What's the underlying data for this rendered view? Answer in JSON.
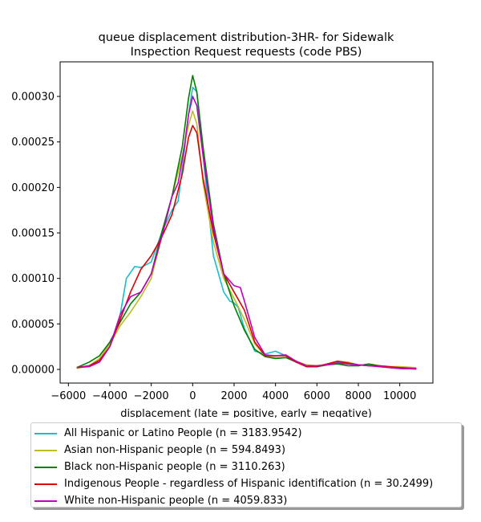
{
  "chart_data": {
    "type": "line",
    "title": "queue displacement distribution-3HR-  for Sidewalk\nInspection Request  requests (code PBS)",
    "xlabel": "displacement (late = positive, early = negative)",
    "ylabel": "",
    "xlim": [
      -6400,
      11600
    ],
    "ylim": [
      -1.5e-05,
      0.000338
    ],
    "xticks": [
      -6000,
      -4000,
      -2000,
      0,
      2000,
      4000,
      6000,
      8000,
      10000
    ],
    "xtick_labels": [
      "−6000",
      "−4000",
      "−2000",
      "0",
      "2000",
      "4000",
      "6000",
      "8000",
      "10000"
    ],
    "yticks": [
      0,
      5e-05,
      0.0001,
      0.00015,
      0.0002,
      0.00025,
      0.0003
    ],
    "ytick_labels": [
      "0.00000",
      "0.00005",
      "0.00010",
      "0.00015",
      "0.00020",
      "0.00025",
      "0.00030"
    ],
    "grid": false,
    "legend_position": "below",
    "series": [
      {
        "name": "All Hispanic or Latino People (n = 3183.9542)",
        "color": "#17becf",
        "x": [
          -5600,
          -5000,
          -4500,
          -4000,
          -3500,
          -3200,
          -2800,
          -2500,
          -2000,
          -1500,
          -1000,
          -700,
          -400,
          -200,
          0,
          200,
          400,
          700,
          1000,
          1500,
          1800,
          2000,
          2200,
          2500,
          3000,
          3500,
          4000,
          4500,
          5000,
          5500,
          6000,
          6500,
          7000,
          7500,
          8000,
          8500,
          9000,
          9500,
          10000,
          10800
        ],
        "y": [
          2e-06,
          4e-06,
          9e-06,
          2.5e-05,
          6e-05,
          0.0001,
          0.000113,
          0.000112,
          0.000118,
          0.00015,
          0.000175,
          0.000185,
          0.00024,
          0.00028,
          0.00031,
          0.000305,
          0.00026,
          0.00019,
          0.000125,
          8.5e-05,
          7.5e-05,
          7.3e-05,
          6.8e-05,
          4.5e-05,
          2e-05,
          1.7e-05,
          2e-05,
          1.5e-05,
          8e-06,
          4e-06,
          3e-06,
          5e-06,
          8e-06,
          7e-06,
          5e-06,
          5e-06,
          3e-06,
          2e-06,
          1e-06,
          5e-07
        ]
      },
      {
        "name": "Asian non-Hispanic people (n = 594.8493)",
        "color": "#bcbd22",
        "x": [
          -5600,
          -5000,
          -4500,
          -4000,
          -3500,
          -3000,
          -2500,
          -2000,
          -1500,
          -1000,
          -500,
          -200,
          0,
          200,
          500,
          1000,
          1500,
          2000,
          2500,
          3000,
          3500,
          4000,
          4500,
          5000,
          5500,
          6000,
          6500,
          7000,
          7500,
          8000,
          8500,
          9000,
          9500,
          10000,
          10800
        ],
        "y": [
          1e-06,
          4e-06,
          1.2e-05,
          2.8e-05,
          4.8e-05,
          6.3e-05,
          8e-05,
          0.0001,
          0.000145,
          0.00019,
          0.000235,
          0.000268,
          0.000284,
          0.00027,
          0.000205,
          0.00014,
          0.0001,
          7.8e-05,
          5.5e-05,
          2.8e-05,
          1.5e-05,
          1.3e-05,
          1.3e-05,
          9e-06,
          5e-06,
          4e-06,
          6e-06,
          9e-06,
          8e-06,
          5e-06,
          4e-06,
          4e-06,
          3e-06,
          3e-06,
          2e-06
        ]
      },
      {
        "name": "Black non-Hispanic people (n = 3110.263)",
        "color": "#008000",
        "x": [
          -5600,
          -5000,
          -4500,
          -4000,
          -3500,
          -3000,
          -2500,
          -2000,
          -1500,
          -1000,
          -500,
          -200,
          0,
          200,
          500,
          1000,
          1500,
          2000,
          2500,
          3000,
          3500,
          4000,
          4500,
          5000,
          5500,
          6000,
          6500,
          7000,
          7500,
          8000,
          8500,
          9000,
          9500,
          10000,
          10800
        ],
        "y": [
          2e-06,
          8e-06,
          1.5e-05,
          3e-05,
          5.2e-05,
          7.2e-05,
          8.5e-05,
          0.000105,
          0.00015,
          0.00019,
          0.000245,
          0.000298,
          0.000323,
          0.000305,
          0.000245,
          0.00016,
          0.000105,
          7e-05,
          4.3e-05,
          2.2e-05,
          1.4e-05,
          1.2e-05,
          1.3e-05,
          8e-06,
          3e-06,
          3e-06,
          5e-06,
          6e-06,
          4e-06,
          4e-06,
          6e-06,
          4e-06,
          2e-06,
          1e-06,
          5e-07
        ]
      },
      {
        "name": "Indigenous People - regardless of Hispanic identification (n = 30.2499)",
        "color": "#e00000",
        "x": [
          -5600,
          -5000,
          -4500,
          -4000,
          -3500,
          -3000,
          -2500,
          -2000,
          -1500,
          -1000,
          -500,
          -200,
          0,
          200,
          500,
          1000,
          1500,
          2000,
          2500,
          3000,
          3500,
          4000,
          4500,
          5000,
          5500,
          6000,
          6500,
          7000,
          7500,
          8000,
          8500,
          9000,
          9500,
          10000,
          10800
        ],
        "y": [
          2e-06,
          4e-06,
          1e-05,
          2.5e-05,
          5.5e-05,
          8.5e-05,
          0.00011,
          0.000125,
          0.000145,
          0.00017,
          0.000215,
          0.000255,
          0.000268,
          0.00026,
          0.00021,
          0.00015,
          0.000105,
          8.5e-05,
          6.5e-05,
          3e-05,
          1.5e-05,
          1.5e-05,
          1.5e-05,
          8e-06,
          3e-06,
          3e-06,
          6e-06,
          9e-06,
          7e-06,
          5e-06,
          4e-06,
          4e-06,
          3e-06,
          2e-06,
          1e-06
        ]
      },
      {
        "name": "White non-Hispanic people (n = 4059.833)",
        "color": "#c000c0",
        "x": [
          -5600,
          -5000,
          -4500,
          -4000,
          -3500,
          -3000,
          -2500,
          -2000,
          -1500,
          -1000,
          -700,
          -400,
          -200,
          0,
          200,
          500,
          1000,
          1500,
          2000,
          2300,
          2500,
          3000,
          3500,
          4000,
          4500,
          5000,
          5500,
          6000,
          6500,
          7000,
          7500,
          8000,
          8500,
          9000,
          9500,
          10000,
          10800
        ],
        "y": [
          2e-06,
          3e-06,
          8e-06,
          2.5e-05,
          6e-05,
          8e-05,
          8.5e-05,
          0.000105,
          0.000145,
          0.00019,
          0.000205,
          0.000245,
          0.00028,
          0.0003,
          0.00029,
          0.000235,
          0.000155,
          0.000105,
          9.2e-05,
          9e-05,
          7.5e-05,
          3.5e-05,
          1.6e-05,
          1.5e-05,
          1.6e-05,
          9e-06,
          4e-06,
          4e-06,
          5e-06,
          7e-06,
          6e-06,
          5e-06,
          4e-06,
          3e-06,
          2e-06,
          1e-06,
          5e-07
        ]
      }
    ]
  }
}
